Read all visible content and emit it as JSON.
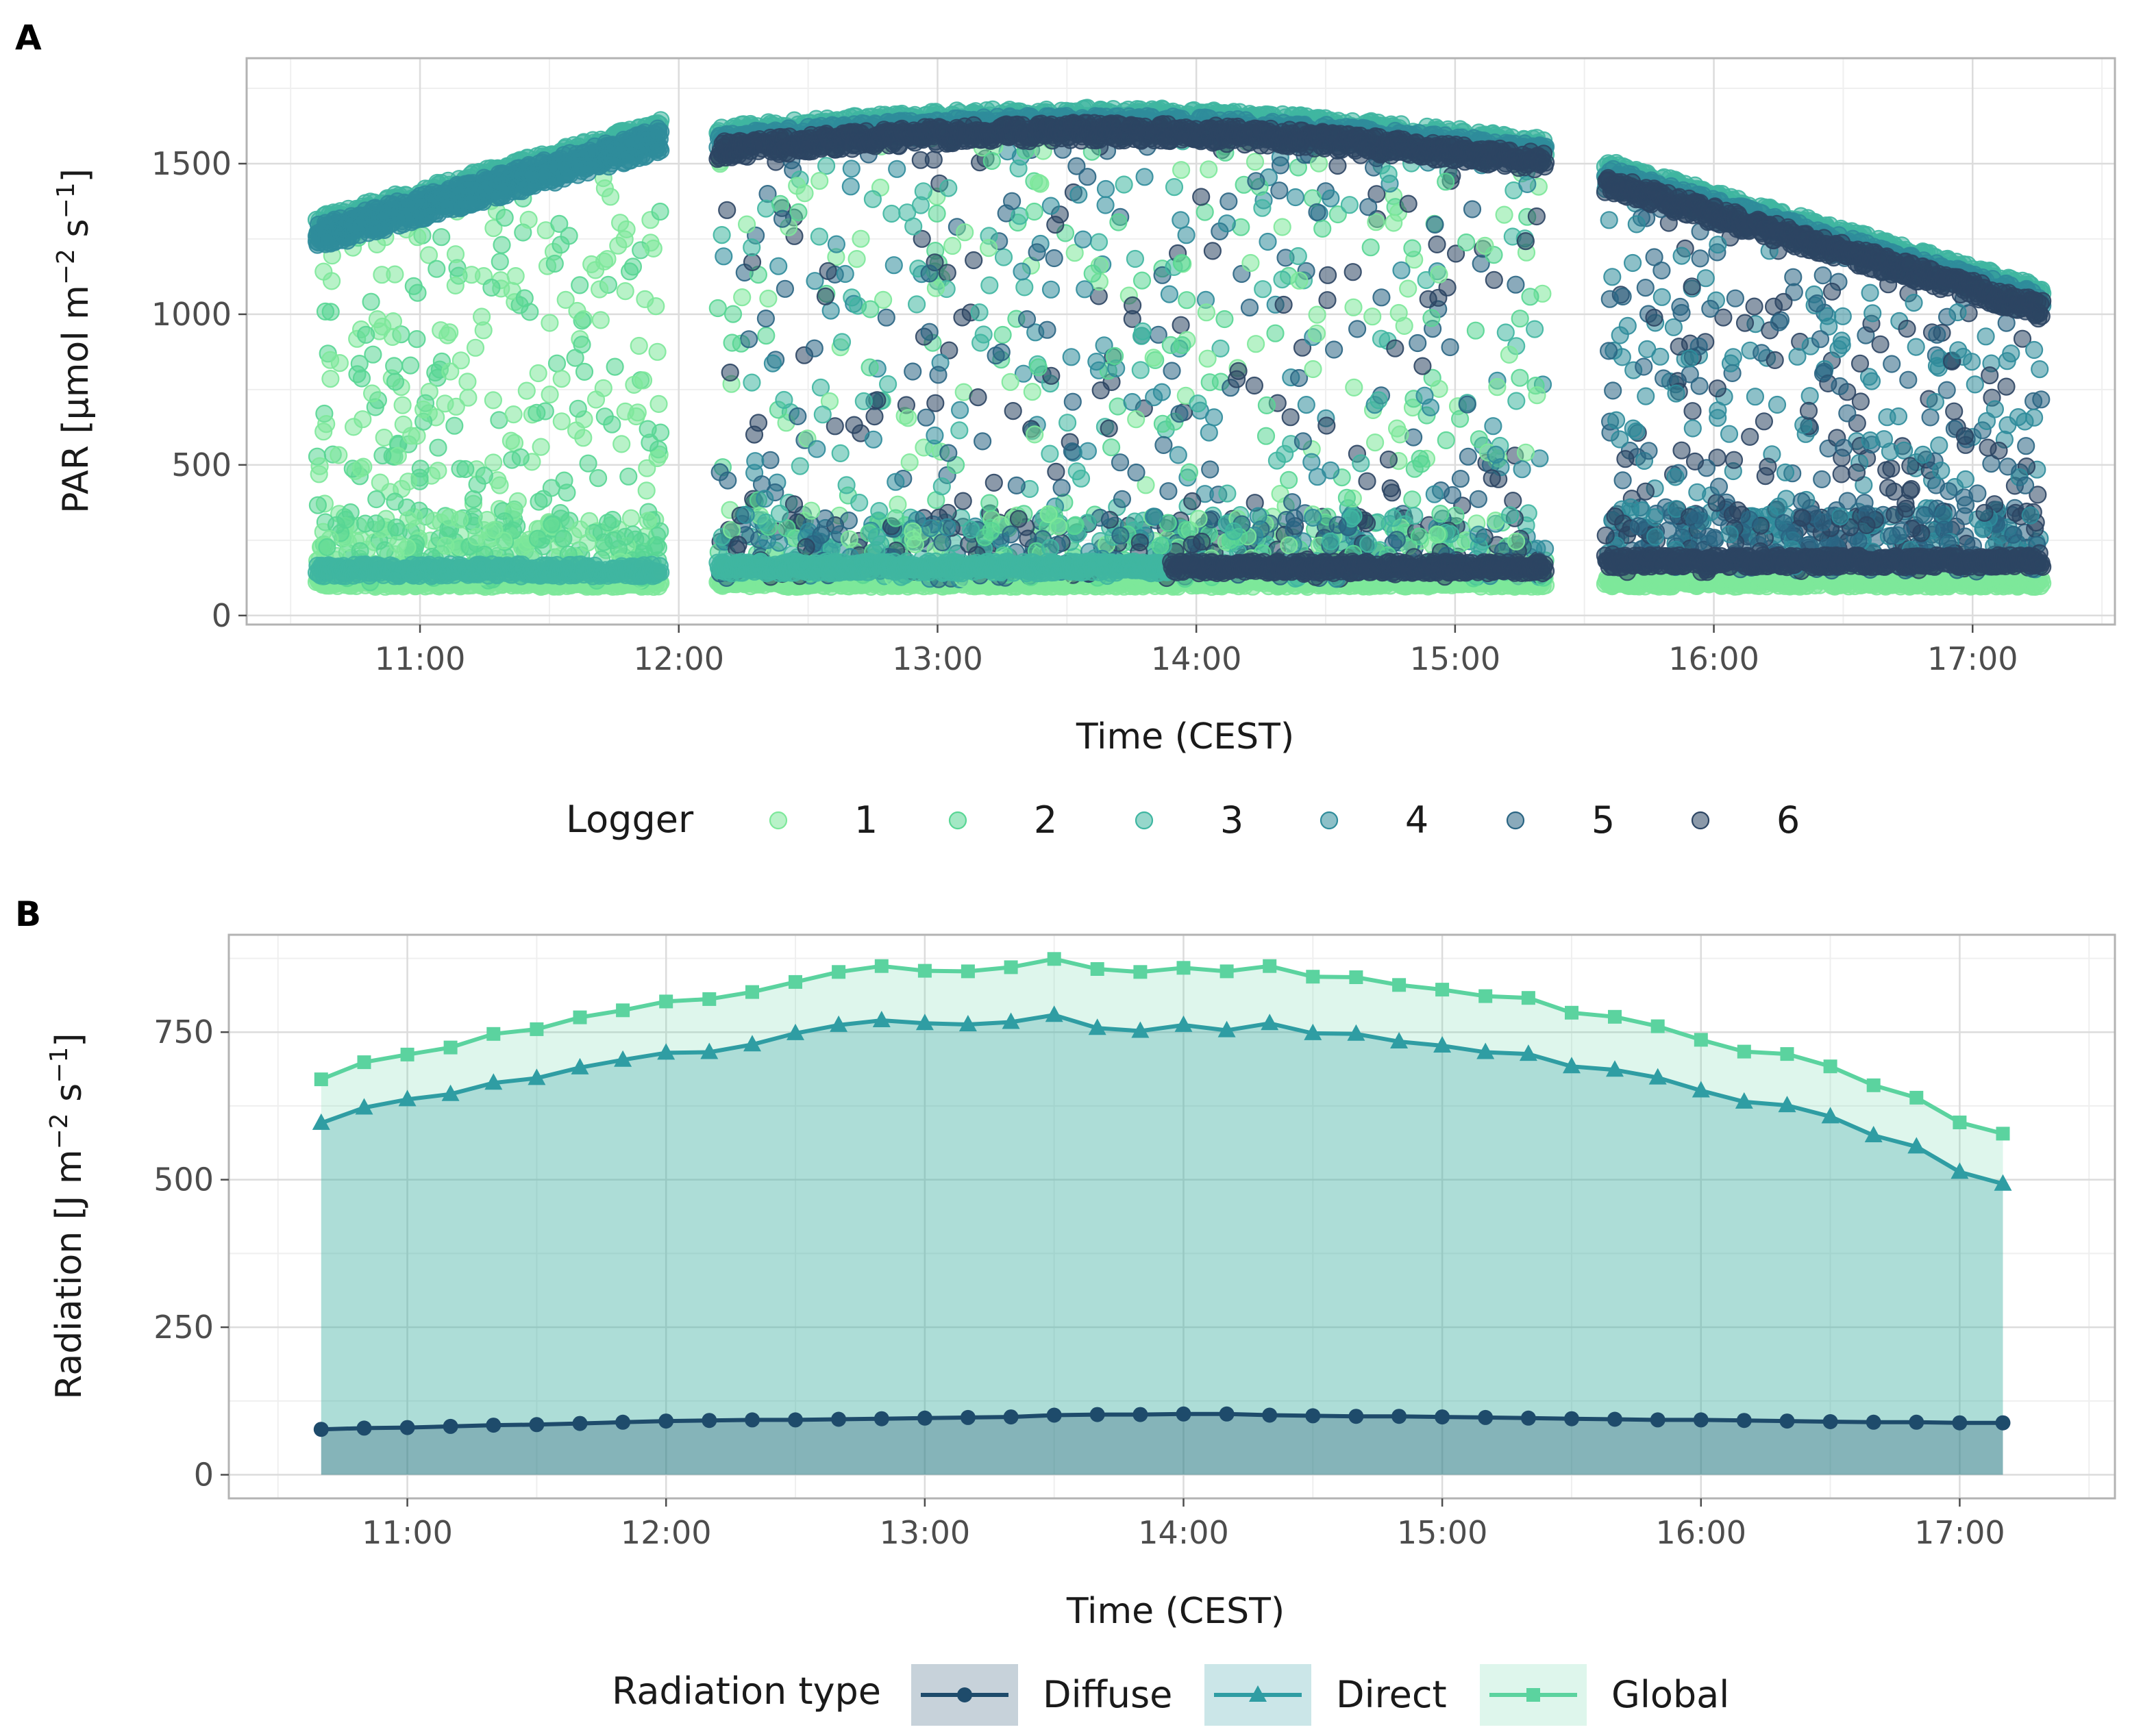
{
  "colors": {
    "logger": [
      "#7de89a",
      "#58d694",
      "#3fb6a1",
      "#2f8c9b",
      "#2a6583",
      "#2c4563"
    ],
    "diffuse": "#1e4b6b",
    "direct": "#2f9da3",
    "global": "#5bd39f",
    "grid_major": "#dcdcdc",
    "grid_minor": "#efefef",
    "panel_border": "#b3b3b3"
  },
  "chart_data": [
    {
      "type": "scatter",
      "panel": "A",
      "xlabel": "Time (CEST)",
      "ylabel_text": "PAR [µmol m",
      "ylabel_sup1": "−2",
      "ylabel_mid": " s",
      "ylabel_sup2": "−1",
      "ylabel_end": "]",
      "xlim": [
        10.33,
        17.55
      ],
      "ylim": [
        -30,
        1850
      ],
      "x_ticks": [
        11,
        12,
        13,
        14,
        15,
        16,
        17
      ],
      "x_tick_labels": [
        "11:00",
        "12:00",
        "13:00",
        "14:00",
        "15:00",
        "16:00",
        "17:00"
      ],
      "y_ticks": [
        0,
        500,
        1000,
        1500
      ],
      "y_tick_labels": [
        "0",
        "500",
        "1000",
        "1500"
      ],
      "legend": {
        "title": "Logger",
        "position": "bottom",
        "labels": [
          "1",
          "2",
          "3",
          "4",
          "5",
          "6"
        ]
      },
      "segments": [
        {
          "start": 10.6,
          "end": 11.93,
          "clear_sky_start": 1280,
          "clear_sky_end": 1600,
          "diffuse_level": 110,
          "band_logger": 4,
          "dense_loggers": [
            1,
            2
          ]
        },
        {
          "start": 12.15,
          "end": 15.35,
          "clear_sky_start": 1580,
          "clear_sky_end": 1540,
          "clear_sky_peak": 1640,
          "diffuse_level": 120,
          "band_logger": 5,
          "dense_loggers": [
            1,
            2,
            3,
            4,
            5,
            6
          ]
        },
        {
          "start": 15.58,
          "end": 17.27,
          "clear_sky_start": 1470,
          "clear_sky_end": 1050,
          "diffuse_level": 140,
          "band_logger": 5,
          "dense_loggers": [
            4,
            5,
            6
          ]
        }
      ],
      "note": "Scatter of PAR readings from 6 loggers; points cluster along the clear-sky envelope (upper band) and the diffuse floor (~100-200), with scattered values in between."
    },
    {
      "type": "area",
      "panel": "B",
      "xlabel": "Time (CEST)",
      "ylabel_text": "Radiation [J m",
      "ylabel_sup1": "−2",
      "ylabel_mid": " s",
      "ylabel_sup2": "−1",
      "ylabel_end": "]",
      "xlim": [
        10.31,
        17.6
      ],
      "ylim": [
        -40,
        915
      ],
      "x_ticks": [
        11,
        12,
        13,
        14,
        15,
        16,
        17
      ],
      "x_tick_labels": [
        "11:00",
        "12:00",
        "13:00",
        "14:00",
        "15:00",
        "16:00",
        "17:00"
      ],
      "y_ticks": [
        0,
        250,
        500,
        750
      ],
      "y_tick_labels": [
        "0",
        "250",
        "500",
        "750"
      ],
      "legend": {
        "title": "Radiation type",
        "position": "bottom",
        "labels": [
          "Diffuse",
          "Direct",
          "Global"
        ]
      },
      "x": [
        10.667,
        10.833,
        11.0,
        11.167,
        11.333,
        11.5,
        11.667,
        11.833,
        12.0,
        12.167,
        12.333,
        12.5,
        12.667,
        12.833,
        13.0,
        13.167,
        13.333,
        13.5,
        13.667,
        13.833,
        14.0,
        14.167,
        14.333,
        14.5,
        14.667,
        14.833,
        15.0,
        15.167,
        15.333,
        15.5,
        15.667,
        15.833,
        16.0,
        16.167,
        16.333,
        16.5,
        16.667,
        16.833,
        17.0,
        17.167
      ],
      "series": [
        {
          "name": "Diffuse",
          "marker": "circle",
          "values": [
            77,
            79,
            80,
            82,
            84,
            85,
            87,
            89,
            91,
            92,
            93,
            93,
            94,
            95,
            96,
            97,
            98,
            101,
            102,
            102,
            103,
            103,
            101,
            100,
            99,
            99,
            98,
            97,
            96,
            95,
            94,
            93,
            93,
            92,
            91,
            90,
            89,
            89,
            88,
            88
          ]
        },
        {
          "name": "Direct",
          "marker": "triangle",
          "values": [
            596,
            622,
            636,
            645,
            664,
            672,
            690,
            703,
            715,
            716,
            729,
            748,
            762,
            770,
            765,
            763,
            767,
            779,
            757,
            752,
            762,
            753,
            765,
            748,
            747,
            734,
            727,
            716,
            713,
            692,
            686,
            673,
            651,
            632,
            626,
            607,
            575,
            556,
            513,
            493
          ]
        },
        {
          "name": "Global",
          "marker": "square",
          "values": [
            670,
            699,
            712,
            724,
            747,
            755,
            775,
            787,
            802,
            806,
            818,
            835,
            852,
            862,
            854,
            853,
            860,
            874,
            857,
            852,
            859,
            853,
            862,
            844,
            843,
            830,
            822,
            811,
            808,
            783,
            776,
            760,
            737,
            717,
            713,
            692,
            660,
            639,
            597,
            578
          ]
        }
      ]
    }
  ]
}
